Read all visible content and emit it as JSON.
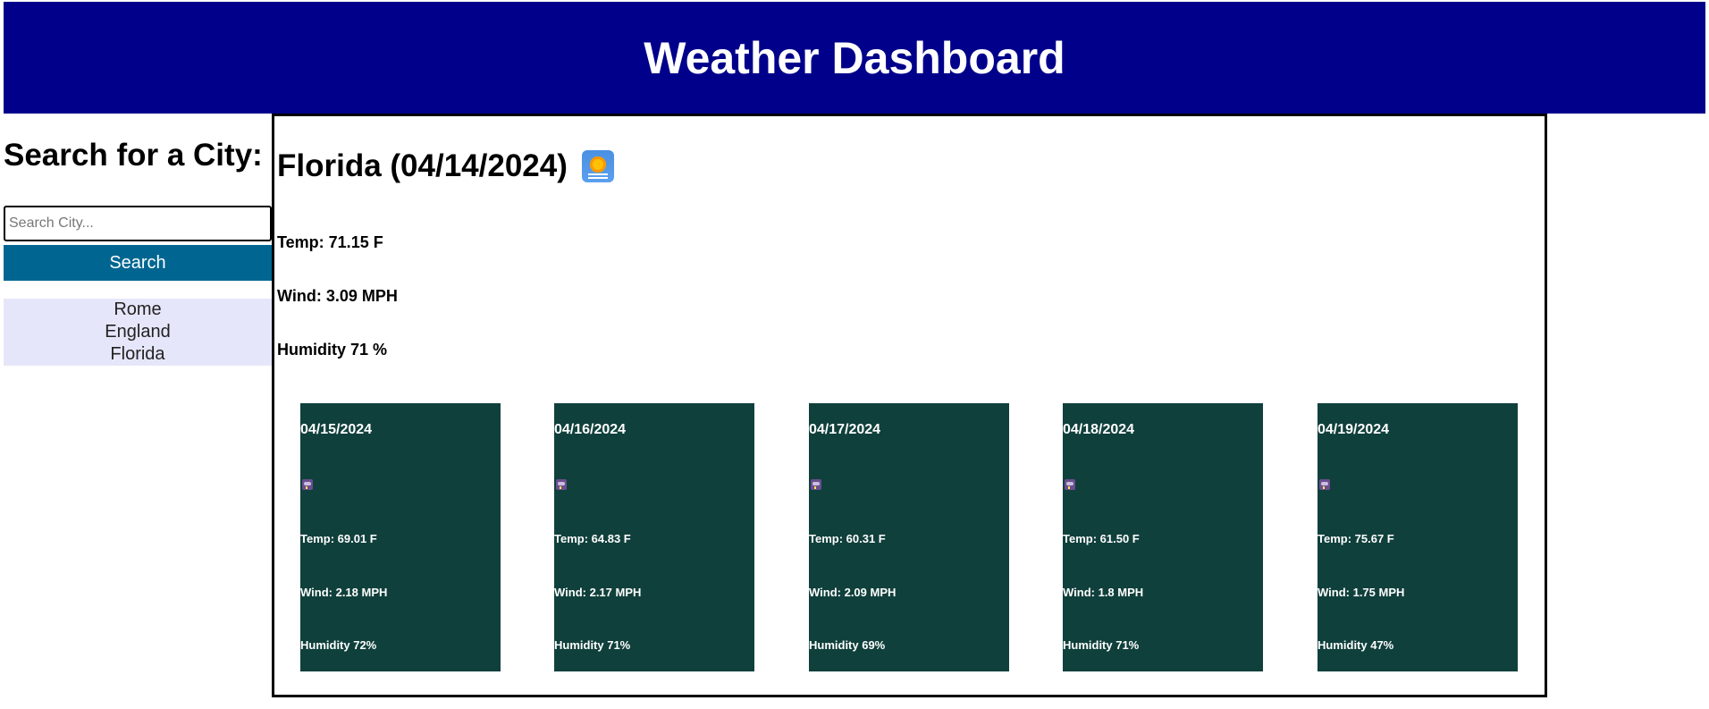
{
  "header": {
    "title": "Weather Dashboard"
  },
  "sidebar": {
    "heading": "Search for a City:",
    "search_placeholder": "Search City...",
    "search_value": "",
    "search_button_label": "Search",
    "history": [
      "Rome",
      "England",
      "Florida"
    ]
  },
  "current": {
    "title": "Florida (04/14/2024)",
    "icon": "sunrise-icon",
    "temp": "Temp: 71.15 F",
    "wind": "Wind: 3.09 MPH",
    "humidity": "Humidity 71 %"
  },
  "forecast": [
    {
      "date": "04/15/2024",
      "icon": "storm-cloud-icon",
      "temp": "Temp: 69.01 F",
      "wind": "Wind: 2.18 MPH",
      "humidity": "Humidity 72%"
    },
    {
      "date": "04/16/2024",
      "icon": "storm-cloud-icon",
      "temp": "Temp: 64.83 F",
      "wind": "Wind: 2.17 MPH",
      "humidity": "Humidity 71%"
    },
    {
      "date": "04/17/2024",
      "icon": "storm-cloud-icon",
      "temp": "Temp: 60.31 F",
      "wind": "Wind: 2.09 MPH",
      "humidity": "Humidity 69%"
    },
    {
      "date": "04/18/2024",
      "icon": "storm-cloud-icon",
      "temp": "Temp: 61.50 F",
      "wind": "Wind: 1.8 MPH",
      "humidity": "Humidity 71%"
    },
    {
      "date": "04/19/2024",
      "icon": "storm-cloud-icon",
      "temp": "Temp: 75.67 F",
      "wind": "Wind: 1.75 MPH",
      "humidity": "Humidity 47%"
    }
  ],
  "colors": {
    "header_bg": "#00008b",
    "search_button_bg": "#006691",
    "history_bg": "#e6e6fa",
    "card_bg": "#10403c"
  }
}
